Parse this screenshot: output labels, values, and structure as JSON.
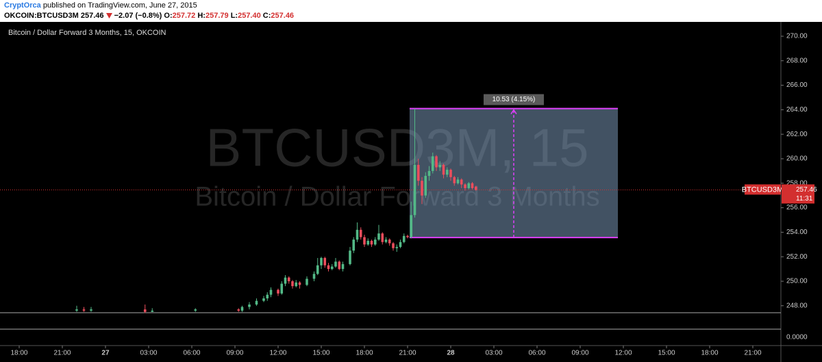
{
  "header": {
    "author": "CryptOrca",
    "published": "published on TradingView.com, June 27, 2015",
    "symbol": "OKCOIN:BTCUSD3M",
    "price": "257.46",
    "change": "−2.07 (−0.8%)",
    "ohlc": [
      {
        "label": "O:",
        "value": "257.72"
      },
      {
        "label": "H:",
        "value": "257.79"
      },
      {
        "label": "L:",
        "value": "257.40"
      },
      {
        "label": "C:",
        "value": "257.46"
      }
    ]
  },
  "chart_data": {
    "type": "candlestick",
    "title": "Bitcoin / Dollar Forward 3 Months, 15, OKCOIN",
    "watermark": "BTCUSD3M, 15",
    "watermark_sub": "Bitcoin / Dollar Forward 3 Months",
    "up_color": "#53b987",
    "down_color": "#eb4d5c",
    "xlim": [
      -1.333,
      52.952
    ],
    "xticks": [
      {
        "value": 0,
        "label": "18:00"
      },
      {
        "value": 3,
        "label": "21:00"
      },
      {
        "value": 6,
        "label": "27"
      },
      {
        "value": 9,
        "label": "03:00"
      },
      {
        "value": 12,
        "label": "06:00"
      },
      {
        "value": 15,
        "label": "09:00"
      },
      {
        "value": 18,
        "label": "12:00"
      },
      {
        "value": 21,
        "label": "15:00"
      },
      {
        "value": 24,
        "label": "18:00"
      },
      {
        "value": 27,
        "label": "21:00"
      },
      {
        "value": 30,
        "label": "28"
      },
      {
        "value": 33,
        "label": "03:00"
      },
      {
        "value": 36,
        "label": "06:00"
      },
      {
        "value": 39,
        "label": "09:00"
      },
      {
        "value": 42,
        "label": "12:00"
      },
      {
        "value": 45,
        "label": "15:00"
      },
      {
        "value": 48,
        "label": "18:00"
      },
      {
        "value": 51,
        "label": "21:00"
      }
    ],
    "ylim": [
      247.43,
      271.17
    ],
    "yticks": [
      {
        "value": 270,
        "label": "270.00"
      },
      {
        "value": 268,
        "label": "268.00"
      },
      {
        "value": 266,
        "label": "266.00"
      },
      {
        "value": 264,
        "label": "264.00"
      },
      {
        "value": 262,
        "label": "262.00"
      },
      {
        "value": 260,
        "label": "260.00"
      },
      {
        "value": 258,
        "label": "258.00"
      },
      {
        "value": 256,
        "label": "256.00"
      },
      {
        "value": 254,
        "label": "254.00"
      },
      {
        "value": 252,
        "label": "252.00"
      },
      {
        "value": 250,
        "label": "250.00"
      },
      {
        "value": 248,
        "label": "248.00"
      }
    ],
    "volume_yticks": [
      {
        "value": 0,
        "label": "0.0000"
      }
    ],
    "x": [
      4.0,
      4.5,
      5.0,
      8.75,
      9.25,
      12.25,
      15.25,
      15.5,
      16,
      16.5,
      17,
      17.25,
      17.5,
      18,
      18.25,
      18.5,
      18.75,
      19,
      19.25,
      19.5,
      20,
      20.5,
      20.75,
      21,
      21.25,
      21.5,
      21.75,
      22,
      22.25,
      22.5,
      23,
      23.25,
      23.5,
      23.75,
      24,
      24.25,
      24.5,
      24.75,
      25,
      25.25,
      25.5,
      25.75,
      26,
      26.25,
      26.5,
      26.75,
      27,
      27.25,
      27.5,
      27.75,
      28,
      28.25,
      28.5,
      28.75,
      29,
      29.25,
      29.5,
      29.75,
      30,
      30.25,
      30.5,
      30.75,
      31,
      31.25,
      31.5,
      31.75
    ],
    "open": [
      247.6,
      247.7,
      247.6,
      247.7,
      247.5,
      247.6,
      247.7,
      247.6,
      247.9,
      248.1,
      248.4,
      248.6,
      248.9,
      249.3,
      249.0,
      249.8,
      250.3,
      250.0,
      249.6,
      249.9,
      249.7,
      250.2,
      250.6,
      251.3,
      251.9,
      251.3,
      251.0,
      251.2,
      251.6,
      251.0,
      251.4,
      252.5,
      253.4,
      254.2,
      253.6,
      253.0,
      253.3,
      253.0,
      253.4,
      253.9,
      253.2,
      253.4,
      253.1,
      252.7,
      252.8,
      253.2,
      253.7,
      253.6,
      255.4,
      259.5,
      258.2,
      257.0,
      258.6,
      259.0,
      260.2,
      259.3,
      259.5,
      258.7,
      259.1,
      258.5,
      258.0,
      258.3,
      257.9,
      257.6,
      258.0,
      257.72
    ],
    "high": [
      248.0,
      247.9,
      247.9,
      248.1,
      247.8,
      247.8,
      247.8,
      248.0,
      248.3,
      248.6,
      248.8,
      249.1,
      249.5,
      249.4,
      250.0,
      250.5,
      250.4,
      250.1,
      250.1,
      250.0,
      250.4,
      250.8,
      251.9,
      252.0,
      252.0,
      251.5,
      251.4,
      251.9,
      251.7,
      251.6,
      252.8,
      253.6,
      254.8,
      254.4,
      253.8,
      253.5,
      253.4,
      253.6,
      254.6,
      254.0,
      253.6,
      253.5,
      253.2,
      253.0,
      253.4,
      253.9,
      253.8,
      256.5,
      264.1,
      260.0,
      258.5,
      258.9,
      259.4,
      260.5,
      260.3,
      259.8,
      259.6,
      259.3,
      259.2,
      258.6,
      258.5,
      258.4,
      258.0,
      258.1,
      258.1,
      257.79
    ],
    "low": [
      247.5,
      247.5,
      247.5,
      247.4,
      247.5,
      247.5,
      247.5,
      247.5,
      247.7,
      248.0,
      248.3,
      248.4,
      248.7,
      248.8,
      248.9,
      249.6,
      249.8,
      249.4,
      249.5,
      249.4,
      249.6,
      250.0,
      250.5,
      251.0,
      251.1,
      250.8,
      250.9,
      251.1,
      250.9,
      250.8,
      251.3,
      252.3,
      253.2,
      253.4,
      252.8,
      252.9,
      252.8,
      252.9,
      253.3,
      253.0,
      253.1,
      252.9,
      252.5,
      252.4,
      252.7,
      253.1,
      253.5,
      253.5,
      255.2,
      257.8,
      256.3,
      256.8,
      258.2,
      258.8,
      259.0,
      259.0,
      258.4,
      258.5,
      258.2,
      257.8,
      257.9,
      257.6,
      257.4,
      257.5,
      257.5,
      257.4
    ],
    "close": [
      247.7,
      247.6,
      247.7,
      247.5,
      247.6,
      247.7,
      247.6,
      247.9,
      248.1,
      248.4,
      248.6,
      248.9,
      249.3,
      249.0,
      249.8,
      250.3,
      250.0,
      249.6,
      249.9,
      249.7,
      250.2,
      250.6,
      251.3,
      251.9,
      251.3,
      251.0,
      251.2,
      251.6,
      251.0,
      251.4,
      252.5,
      253.4,
      254.2,
      253.6,
      253.0,
      253.3,
      253.0,
      253.4,
      253.9,
      253.2,
      253.4,
      253.1,
      252.7,
      252.8,
      253.2,
      253.7,
      253.6,
      255.4,
      259.5,
      258.2,
      257.0,
      258.6,
      259.0,
      260.2,
      259.3,
      259.5,
      258.7,
      259.1,
      258.5,
      258.0,
      258.3,
      257.9,
      257.6,
      258.0,
      257.6,
      257.46
    ],
    "measure": {
      "x": [
        27.14,
        41.62
      ],
      "low": 253.57,
      "high": 264.1,
      "label": "10.53 (4.15%)",
      "color": "#e040fb"
    },
    "last_price": {
      "label": "BTCUSD3M",
      "value": 257.46,
      "value_label": "257.46",
      "time": "11:31",
      "color": "#d32f2f"
    }
  }
}
